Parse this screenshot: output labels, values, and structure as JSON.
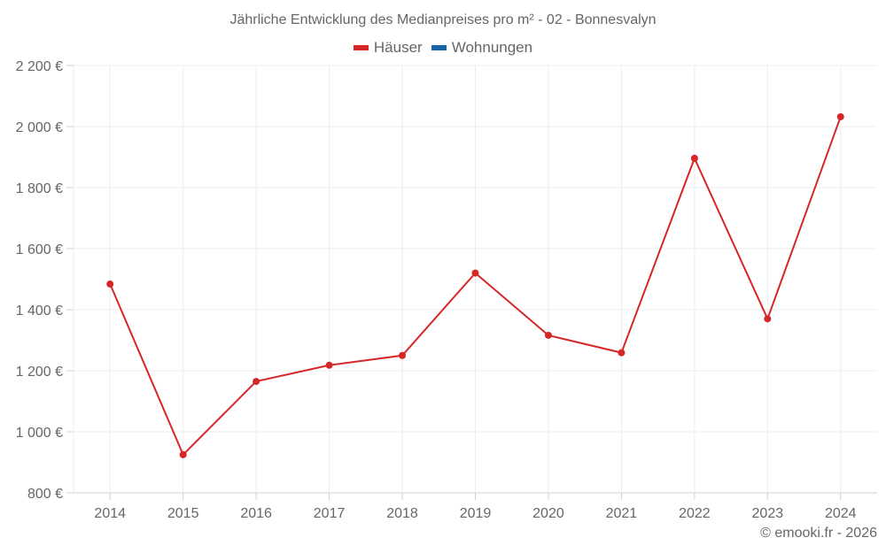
{
  "title": "Jährliche Entwicklung des Medianpreises pro m² - 02 - Bonnesvalyn",
  "legend": [
    {
      "label": "Häuser",
      "color": "#d62728"
    },
    {
      "label": "Wohnungen",
      "color": "#1565a8"
    }
  ],
  "credit": "© emooki.fr - 2026",
  "chart_data": {
    "type": "line",
    "title": "Jährliche Entwicklung des Medianpreises pro m² - 02 - Bonnesvalyn",
    "xlabel": "",
    "ylabel": "",
    "categories": [
      "2014",
      "2015",
      "2016",
      "2017",
      "2018",
      "2019",
      "2020",
      "2021",
      "2022",
      "2023",
      "2024"
    ],
    "series": [
      {
        "name": "Häuser",
        "color": "#d62728",
        "values": [
          1484,
          925,
          1165,
          1218,
          1250,
          1520,
          1316,
          1259,
          1896,
          1370,
          2032
        ]
      },
      {
        "name": "Wohnungen",
        "color": "#1565a8",
        "values": []
      }
    ],
    "ylim": [
      800,
      2200
    ],
    "yticks": [
      800,
      1000,
      1200,
      1400,
      1600,
      1800,
      2000,
      2200
    ],
    "ytick_labels": [
      "800 €",
      "1 000 €",
      "1 200 €",
      "1 400 €",
      "1 600 €",
      "1 800 €",
      "2 000 €",
      "2 200 €"
    ],
    "grid": true,
    "legend_position": "top"
  }
}
